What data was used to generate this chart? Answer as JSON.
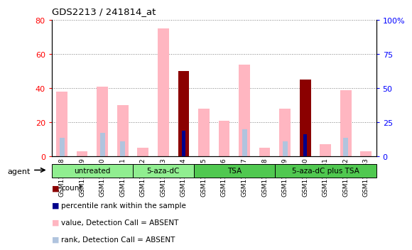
{
  "title": "GDS2213 / 241814_at",
  "samples": [
    "GSM118418",
    "GSM118419",
    "GSM118420",
    "GSM118421",
    "GSM118422",
    "GSM118423",
    "GSM118424",
    "GSM118425",
    "GSM118426",
    "GSM118427",
    "GSM118428",
    "GSM118429",
    "GSM118430",
    "GSM118431",
    "GSM118432",
    "GSM118433"
  ],
  "value_absent": [
    38,
    3,
    41,
    30,
    5,
    75,
    null,
    28,
    21,
    54,
    5,
    28,
    null,
    7,
    39,
    3
  ],
  "rank_absent": [
    11,
    null,
    14,
    9,
    null,
    null,
    null,
    null,
    null,
    16,
    null,
    9,
    null,
    null,
    11,
    null
  ],
  "count_present": [
    null,
    null,
    null,
    null,
    null,
    null,
    50,
    null,
    null,
    null,
    null,
    null,
    45,
    null,
    null,
    null
  ],
  "rank_present": [
    null,
    null,
    null,
    null,
    null,
    null,
    15,
    null,
    null,
    null,
    null,
    null,
    13,
    null,
    null,
    null
  ],
  "group_defs": [
    {
      "label": "untreated",
      "start": 0,
      "end": 3,
      "color": "#90EE90"
    },
    {
      "label": "5-aza-dC",
      "start": 4,
      "end": 6,
      "color": "#90EE90"
    },
    {
      "label": "TSA",
      "start": 7,
      "end": 10,
      "color": "#50C850"
    },
    {
      "label": "5-aza-dC plus TSA",
      "start": 11,
      "end": 15,
      "color": "#50C850"
    }
  ],
  "ylim_left": [
    0,
    80
  ],
  "ylim_right": [
    0,
    100
  ],
  "yticks_left": [
    0,
    20,
    40,
    60,
    80
  ],
  "yticks_right": [
    0,
    25,
    50,
    75,
    100
  ],
  "ytick_labels_right": [
    "0",
    "25",
    "50",
    "75",
    "100%"
  ],
  "color_count": "#8B0000",
  "color_rank_present": "#00008B",
  "color_value_absent": "#FFB6C1",
  "color_rank_absent": "#B0C4DE",
  "bar_width": 0.55,
  "legend_items": [
    {
      "label": "count",
      "color": "#8B0000"
    },
    {
      "label": "percentile rank within the sample",
      "color": "#00008B"
    },
    {
      "label": "value, Detection Call = ABSENT",
      "color": "#FFB6C1"
    },
    {
      "label": "rank, Detection Call = ABSENT",
      "color": "#B0C4DE"
    }
  ]
}
